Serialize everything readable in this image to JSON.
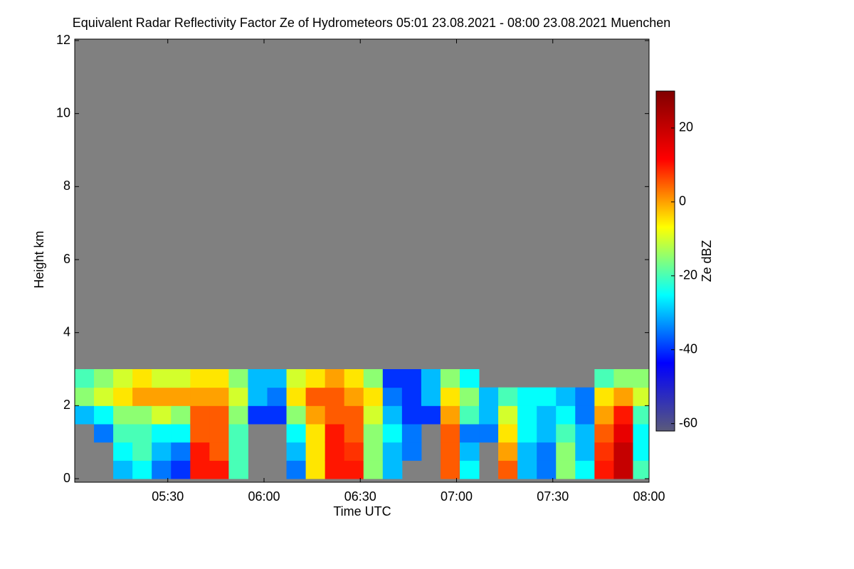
{
  "chart_data": {
    "type": "heatmap",
    "title": "Equivalent Radar Reflectivity Factor Ze of Hydrometeors   05:01 23.08.2021 - 08:00 23.08.2021 Muenchen",
    "xlabel": "Time UTC",
    "ylabel": "Height km",
    "colorbar_label": "Ze dBZ",
    "xlim": [
      "05:01",
      "08:00"
    ],
    "xticks": [
      "05:30",
      "06:00",
      "06:30",
      "07:00",
      "07:30",
      "08:00"
    ],
    "ylim": [
      0,
      12
    ],
    "yticks": [
      0,
      2,
      4,
      6,
      8,
      10,
      12
    ],
    "zlim": [
      -62,
      30
    ],
    "zticks": [
      -60,
      -40,
      -20,
      0,
      20
    ],
    "background": "#808080",
    "colormap": [
      "#5a5a7a",
      "#0000ff",
      "#00ffff",
      "#ffff00",
      "#ff0000",
      "#800000"
    ],
    "x": [
      "05:04",
      "05:10",
      "05:16",
      "05:22",
      "05:28",
      "05:34",
      "05:40",
      "05:46",
      "05:52",
      "05:58",
      "06:04",
      "06:10",
      "06:16",
      "06:22",
      "06:28",
      "06:34",
      "06:40",
      "06:46",
      "06:52",
      "06:58",
      "07:04",
      "07:10",
      "07:16",
      "07:22",
      "07:28",
      "07:34",
      "07:40",
      "07:46",
      "07:52",
      "07:58"
    ],
    "y": [
      0.25,
      0.75,
      1.25,
      1.75,
      2.25,
      2.75
    ],
    "z": [
      [
        null,
        null,
        null,
        -30,
        -15,
        -20
      ],
      [
        null,
        null,
        -35,
        -25,
        -10,
        -15
      ],
      [
        -30,
        -25,
        -20,
        -15,
        -5,
        -10
      ],
      [
        -25,
        -20,
        -20,
        -15,
        0,
        -5
      ],
      [
        -35,
        -30,
        -25,
        -10,
        0,
        -10
      ],
      [
        -40,
        -35,
        -25,
        -15,
        0,
        -10
      ],
      [
        10,
        10,
        5,
        5,
        0,
        -5
      ],
      [
        10,
        5,
        5,
        5,
        0,
        -5
      ],
      [
        -20,
        -20,
        -20,
        -15,
        -10,
        -15
      ],
      [
        null,
        null,
        null,
        -40,
        -30,
        -30
      ],
      [
        null,
        null,
        null,
        -40,
        -35,
        -30
      ],
      [
        -35,
        -30,
        -25,
        -15,
        -5,
        -10
      ],
      [
        -5,
        -5,
        -5,
        0,
        5,
        -5
      ],
      [
        10,
        10,
        10,
        5,
        5,
        0
      ],
      [
        10,
        8,
        5,
        5,
        0,
        -5
      ],
      [
        -15,
        -15,
        -15,
        -10,
        -5,
        -15
      ],
      [
        -30,
        -30,
        -25,
        -30,
        -35,
        -40
      ],
      [
        null,
        -35,
        -35,
        -40,
        -40,
        -40
      ],
      [
        null,
        null,
        null,
        -40,
        -30,
        -30
      ],
      [
        5,
        5,
        5,
        0,
        -5,
        -15
      ],
      [
        -25,
        -30,
        -35,
        -20,
        -15,
        -25
      ],
      [
        null,
        null,
        -35,
        -30,
        -30,
        null
      ],
      [
        5,
        0,
        -5,
        -10,
        -20,
        null
      ],
      [
        -30,
        -30,
        -25,
        -25,
        -25,
        null
      ],
      [
        -35,
        -35,
        -30,
        -30,
        -25,
        null
      ],
      [
        -15,
        -15,
        -20,
        -25,
        -30,
        null
      ],
      [
        -25,
        -30,
        -30,
        -35,
        -35,
        null
      ],
      [
        10,
        8,
        5,
        0,
        -5,
        -20
      ],
      [
        20,
        20,
        15,
        10,
        0,
        -15
      ],
      [
        -20,
        -25,
        -25,
        -20,
        -10,
        -15
      ]
    ]
  }
}
